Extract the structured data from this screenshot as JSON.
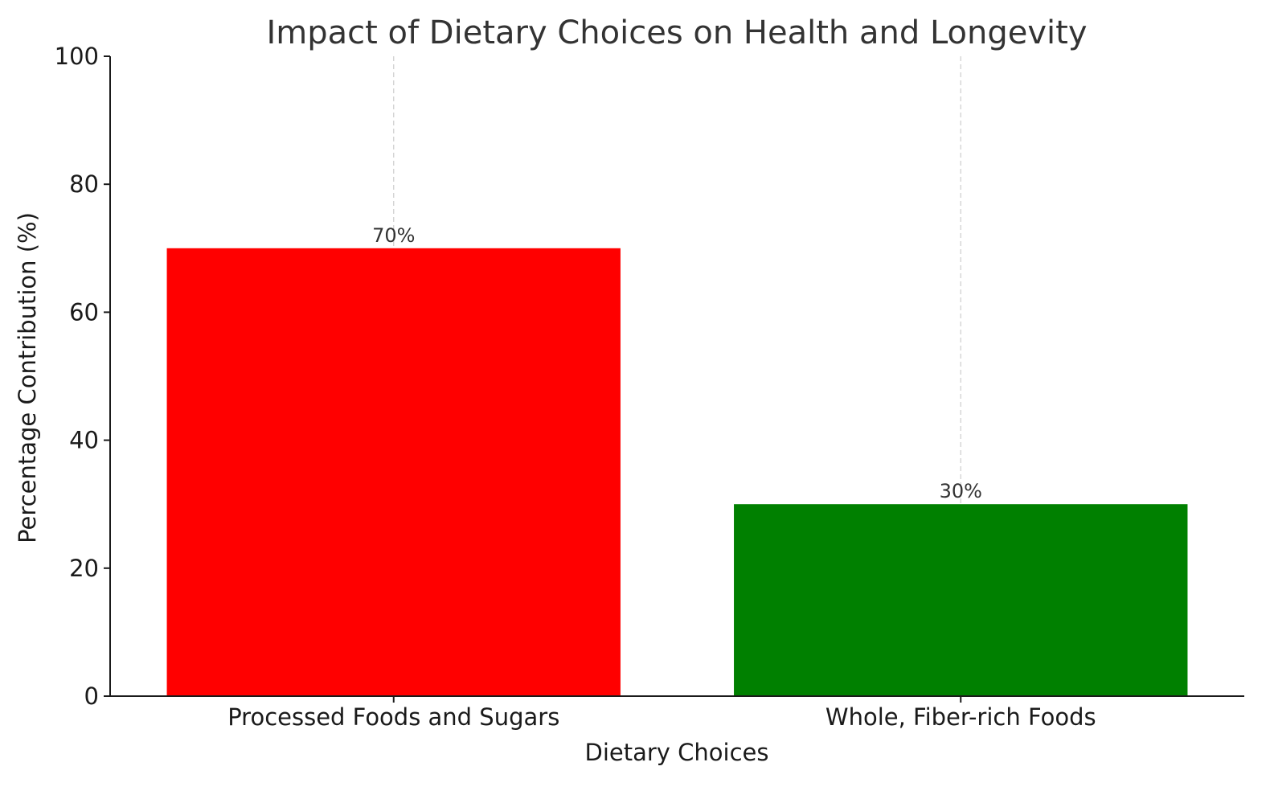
{
  "chart_data": {
    "type": "bar",
    "title": "Impact of Dietary Choices on Health and Longevity",
    "xlabel": "Dietary Choices",
    "ylabel": "Percentage Contribution (%)",
    "categories": [
      "Processed Foods and Sugars",
      "Whole, Fiber-rich Foods"
    ],
    "values": [
      70,
      30
    ],
    "data_labels": [
      "70%",
      "30%"
    ],
    "colors": [
      "#ff0000",
      "#008000"
    ],
    "ylim": [
      0,
      100
    ],
    "yticks": [
      0,
      20,
      40,
      60,
      80,
      100
    ],
    "grid": "x-only, dashed",
    "legend": "none"
  }
}
